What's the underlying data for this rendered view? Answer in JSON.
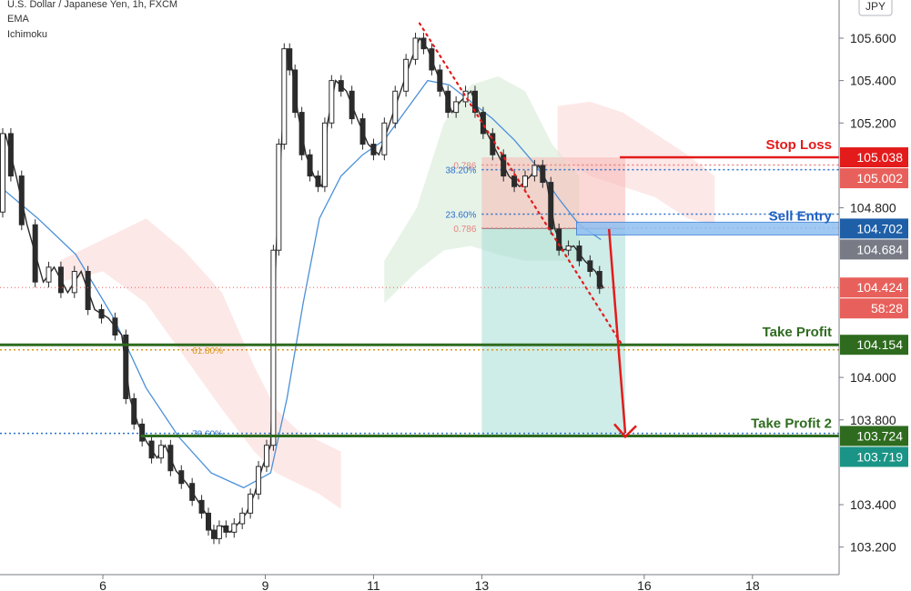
{
  "header": {
    "symbol_line": "U.S. Dollar / Japanese Yen, 1h, FXCM",
    "indicator_1": "EMA",
    "indicator_2": "Ichimoku",
    "currency_button": "JPY"
  },
  "chart_data": {
    "type": "candlestick",
    "title": "U.S. Dollar / Japanese Yen, 1h, FXCM",
    "ylim": [
      103.07,
      105.78
    ],
    "xlim": [
      4.1,
      19.6
    ],
    "y_ticks": [
      "105.600",
      "105.400",
      "105.200",
      "104.800",
      "104.000",
      "103.800",
      "103.400",
      "103.200"
    ],
    "x_ticks": [
      {
        "label": "6",
        "x": 6
      },
      {
        "label": "9",
        "x": 9
      },
      {
        "label": "11",
        "x": 11
      },
      {
        "label": "13",
        "x": 13
      },
      {
        "label": "16",
        "x": 16
      },
      {
        "label": "18",
        "x": 18
      }
    ],
    "price_path": [
      [
        4.1,
        104.78
      ],
      [
        4.2,
        105.15
      ],
      [
        4.4,
        104.95
      ],
      [
        4.6,
        104.72
      ],
      [
        4.9,
        104.45
      ],
      [
        5.1,
        104.52
      ],
      [
        5.35,
        104.4
      ],
      [
        5.6,
        104.5
      ],
      [
        5.85,
        104.32
      ],
      [
        6.1,
        104.28
      ],
      [
        6.35,
        104.2
      ],
      [
        6.5,
        103.9
      ],
      [
        6.65,
        103.78
      ],
      [
        6.8,
        103.7
      ],
      [
        7.0,
        103.62
      ],
      [
        7.15,
        103.68
      ],
      [
        7.35,
        103.56
      ],
      [
        7.55,
        103.5
      ],
      [
        7.75,
        103.42
      ],
      [
        7.9,
        103.36
      ],
      [
        8.0,
        103.28
      ],
      [
        8.1,
        103.24
      ],
      [
        8.2,
        103.3
      ],
      [
        8.35,
        103.27
      ],
      [
        8.5,
        103.31
      ],
      [
        8.65,
        103.36
      ],
      [
        8.8,
        103.45
      ],
      [
        8.95,
        103.58
      ],
      [
        9.1,
        103.68
      ],
      [
        9.2,
        104.6
      ],
      [
        9.3,
        105.1
      ],
      [
        9.4,
        105.55
      ],
      [
        9.5,
        105.45
      ],
      [
        9.6,
        105.25
      ],
      [
        9.75,
        105.05
      ],
      [
        9.9,
        104.95
      ],
      [
        10.05,
        104.9
      ],
      [
        10.15,
        105.2
      ],
      [
        10.3,
        105.4
      ],
      [
        10.5,
        105.35
      ],
      [
        10.7,
        105.22
      ],
      [
        10.9,
        105.1
      ],
      [
        11.1,
        105.05
      ],
      [
        11.3,
        105.2
      ],
      [
        11.5,
        105.35
      ],
      [
        11.7,
        105.5
      ],
      [
        11.85,
        105.6
      ],
      [
        12.0,
        105.55
      ],
      [
        12.15,
        105.45
      ],
      [
        12.3,
        105.35
      ],
      [
        12.45,
        105.25
      ],
      [
        12.6,
        105.3
      ],
      [
        12.8,
        105.35
      ],
      [
        12.95,
        105.25
      ],
      [
        13.1,
        105.15
      ],
      [
        13.3,
        105.05
      ],
      [
        13.5,
        104.95
      ],
      [
        13.7,
        104.9
      ],
      [
        13.9,
        104.95
      ],
      [
        14.05,
        105.0
      ],
      [
        14.2,
        104.92
      ],
      [
        14.35,
        104.7
      ],
      [
        14.5,
        104.6
      ],
      [
        14.7,
        104.62
      ],
      [
        14.9,
        104.55
      ],
      [
        15.1,
        104.5
      ],
      [
        15.25,
        104.42
      ]
    ],
    "ema_path": [
      [
        4.1,
        104.9
      ],
      [
        4.8,
        104.75
      ],
      [
        5.5,
        104.58
      ],
      [
        6.2,
        104.28
      ],
      [
        6.8,
        103.95
      ],
      [
        7.4,
        103.72
      ],
      [
        8.0,
        103.55
      ],
      [
        8.6,
        103.48
      ],
      [
        9.1,
        103.55
      ],
      [
        9.4,
        103.9
      ],
      [
        9.7,
        104.35
      ],
      [
        10.0,
        104.75
      ],
      [
        10.4,
        104.95
      ],
      [
        10.8,
        105.05
      ],
      [
        11.2,
        105.12
      ],
      [
        11.6,
        105.26
      ],
      [
        12.0,
        105.4
      ],
      [
        12.4,
        105.38
      ],
      [
        12.8,
        105.3
      ],
      [
        13.2,
        105.22
      ],
      [
        13.6,
        105.12
      ],
      [
        14.0,
        105.0
      ],
      [
        14.4,
        104.85
      ],
      [
        14.8,
        104.72
      ],
      [
        15.2,
        104.65
      ]
    ],
    "cloud_red_top": [
      [
        5.2,
        104.55
      ],
      [
        6.0,
        104.65
      ],
      [
        6.8,
        104.75
      ],
      [
        7.5,
        104.6
      ],
      [
        8.2,
        104.4
      ],
      [
        8.8,
        104.05
      ],
      [
        9.2,
        103.85
      ],
      [
        9.6,
        103.75
      ],
      [
        10.0,
        103.7
      ],
      [
        10.4,
        103.65
      ]
    ],
    "cloud_red_bottom": [
      [
        5.2,
        104.45
      ],
      [
        6.0,
        104.5
      ],
      [
        6.8,
        104.35
      ],
      [
        7.5,
        104.1
      ],
      [
        8.2,
        103.85
      ],
      [
        8.8,
        103.65
      ],
      [
        9.2,
        103.55
      ],
      [
        9.6,
        103.5
      ],
      [
        10.0,
        103.45
      ],
      [
        10.4,
        103.38
      ]
    ],
    "cloud_green_top": [
      [
        11.2,
        104.55
      ],
      [
        11.8,
        104.8
      ],
      [
        12.3,
        105.2
      ],
      [
        12.8,
        105.38
      ],
      [
        13.3,
        105.42
      ],
      [
        13.8,
        105.35
      ],
      [
        14.3,
        105.1
      ],
      [
        14.8,
        104.95
      ]
    ],
    "cloud_green_bottom": [
      [
        11.2,
        104.35
      ],
      [
        11.8,
        104.5
      ],
      [
        12.3,
        104.6
      ],
      [
        12.8,
        104.62
      ],
      [
        13.3,
        104.58
      ],
      [
        13.8,
        104.55
      ],
      [
        14.3,
        104.55
      ],
      [
        14.8,
        104.55
      ]
    ],
    "cloud_red_right_top": [
      [
        14.4,
        105.28
      ],
      [
        15.0,
        105.3
      ],
      [
        15.6,
        105.25
      ],
      [
        16.2,
        105.15
      ],
      [
        16.8,
        105.05
      ],
      [
        17.3,
        104.95
      ]
    ],
    "cloud_red_right_bottom": [
      [
        14.4,
        105.05
      ],
      [
        15.0,
        104.95
      ],
      [
        15.6,
        104.9
      ],
      [
        16.2,
        104.85
      ],
      [
        16.8,
        104.75
      ],
      [
        17.3,
        104.72
      ]
    ],
    "trendline": [
      [
        11.85,
        105.67
      ],
      [
        15.6,
        104.15
      ]
    ],
    "position": {
      "x_start": 13.0,
      "x_end": 15.65,
      "entry": 104.702,
      "stop": 105.038,
      "target": 103.724,
      "profit_box_bottom": 103.73
    },
    "levels": {
      "stop_loss": {
        "label": "Stop Loss",
        "value": 105.038,
        "color": "#e31b1b"
      },
      "sell_entry": {
        "label": "Sell Entry",
        "value": 104.702,
        "color": "#1e5fc2"
      },
      "take_profit": {
        "label": "Take Profit",
        "value": 104.154,
        "color": "#2e6b1f"
      },
      "take_profit_2": {
        "label": "Take Profit 2",
        "value": 103.724,
        "color": "#2e6b1f"
      }
    },
    "fib_levels": [
      {
        "label": "0.786",
        "value": 105.002,
        "x_start": 13.0,
        "color": "#e8827f"
      },
      {
        "label": "38.20%",
        "value": 104.98,
        "x_start": 13.0,
        "color": "#2a6fc9"
      },
      {
        "label": "23.60%",
        "value": 104.77,
        "x_start": 13.0,
        "color": "#2a6fc9"
      },
      {
        "label": "0.786",
        "value": 104.704,
        "x_start": 13.0,
        "color": "#e8827f"
      },
      {
        "label": "61.80%",
        "value": 104.13,
        "x_start": 4.1,
        "color": "#d69a1a"
      },
      {
        "label": "78.60%",
        "value": 103.736,
        "x_start": 4.1,
        "color": "#2a6fc9"
      }
    ],
    "price_tags": [
      {
        "label": "105.038",
        "value": 105.038,
        "color": "#e31b1b"
      },
      {
        "label": "105.002",
        "value": 105.002,
        "color": "#e8605b"
      },
      {
        "label": "104.702",
        "value": 104.702,
        "color": "#1e5fa8"
      },
      {
        "label": "104.684",
        "value": 104.684,
        "color": "#787b86"
      },
      {
        "label": "104.424",
        "value": 104.424,
        "color": "#e8605b"
      },
      {
        "label": "58:28",
        "value": 104.33,
        "color": "#e8605b"
      },
      {
        "label": "104.154",
        "value": 104.154,
        "color": "#2e6b1f"
      },
      {
        "label": "103.724",
        "value": 103.724,
        "color": "#2e6b1f"
      },
      {
        "label": "103.719",
        "value": 103.719,
        "color": "#1a9486"
      }
    ],
    "current_price": 104.424,
    "arrow": {
      "from": [
        15.35,
        104.7
      ],
      "to": [
        15.65,
        103.72
      ]
    }
  }
}
